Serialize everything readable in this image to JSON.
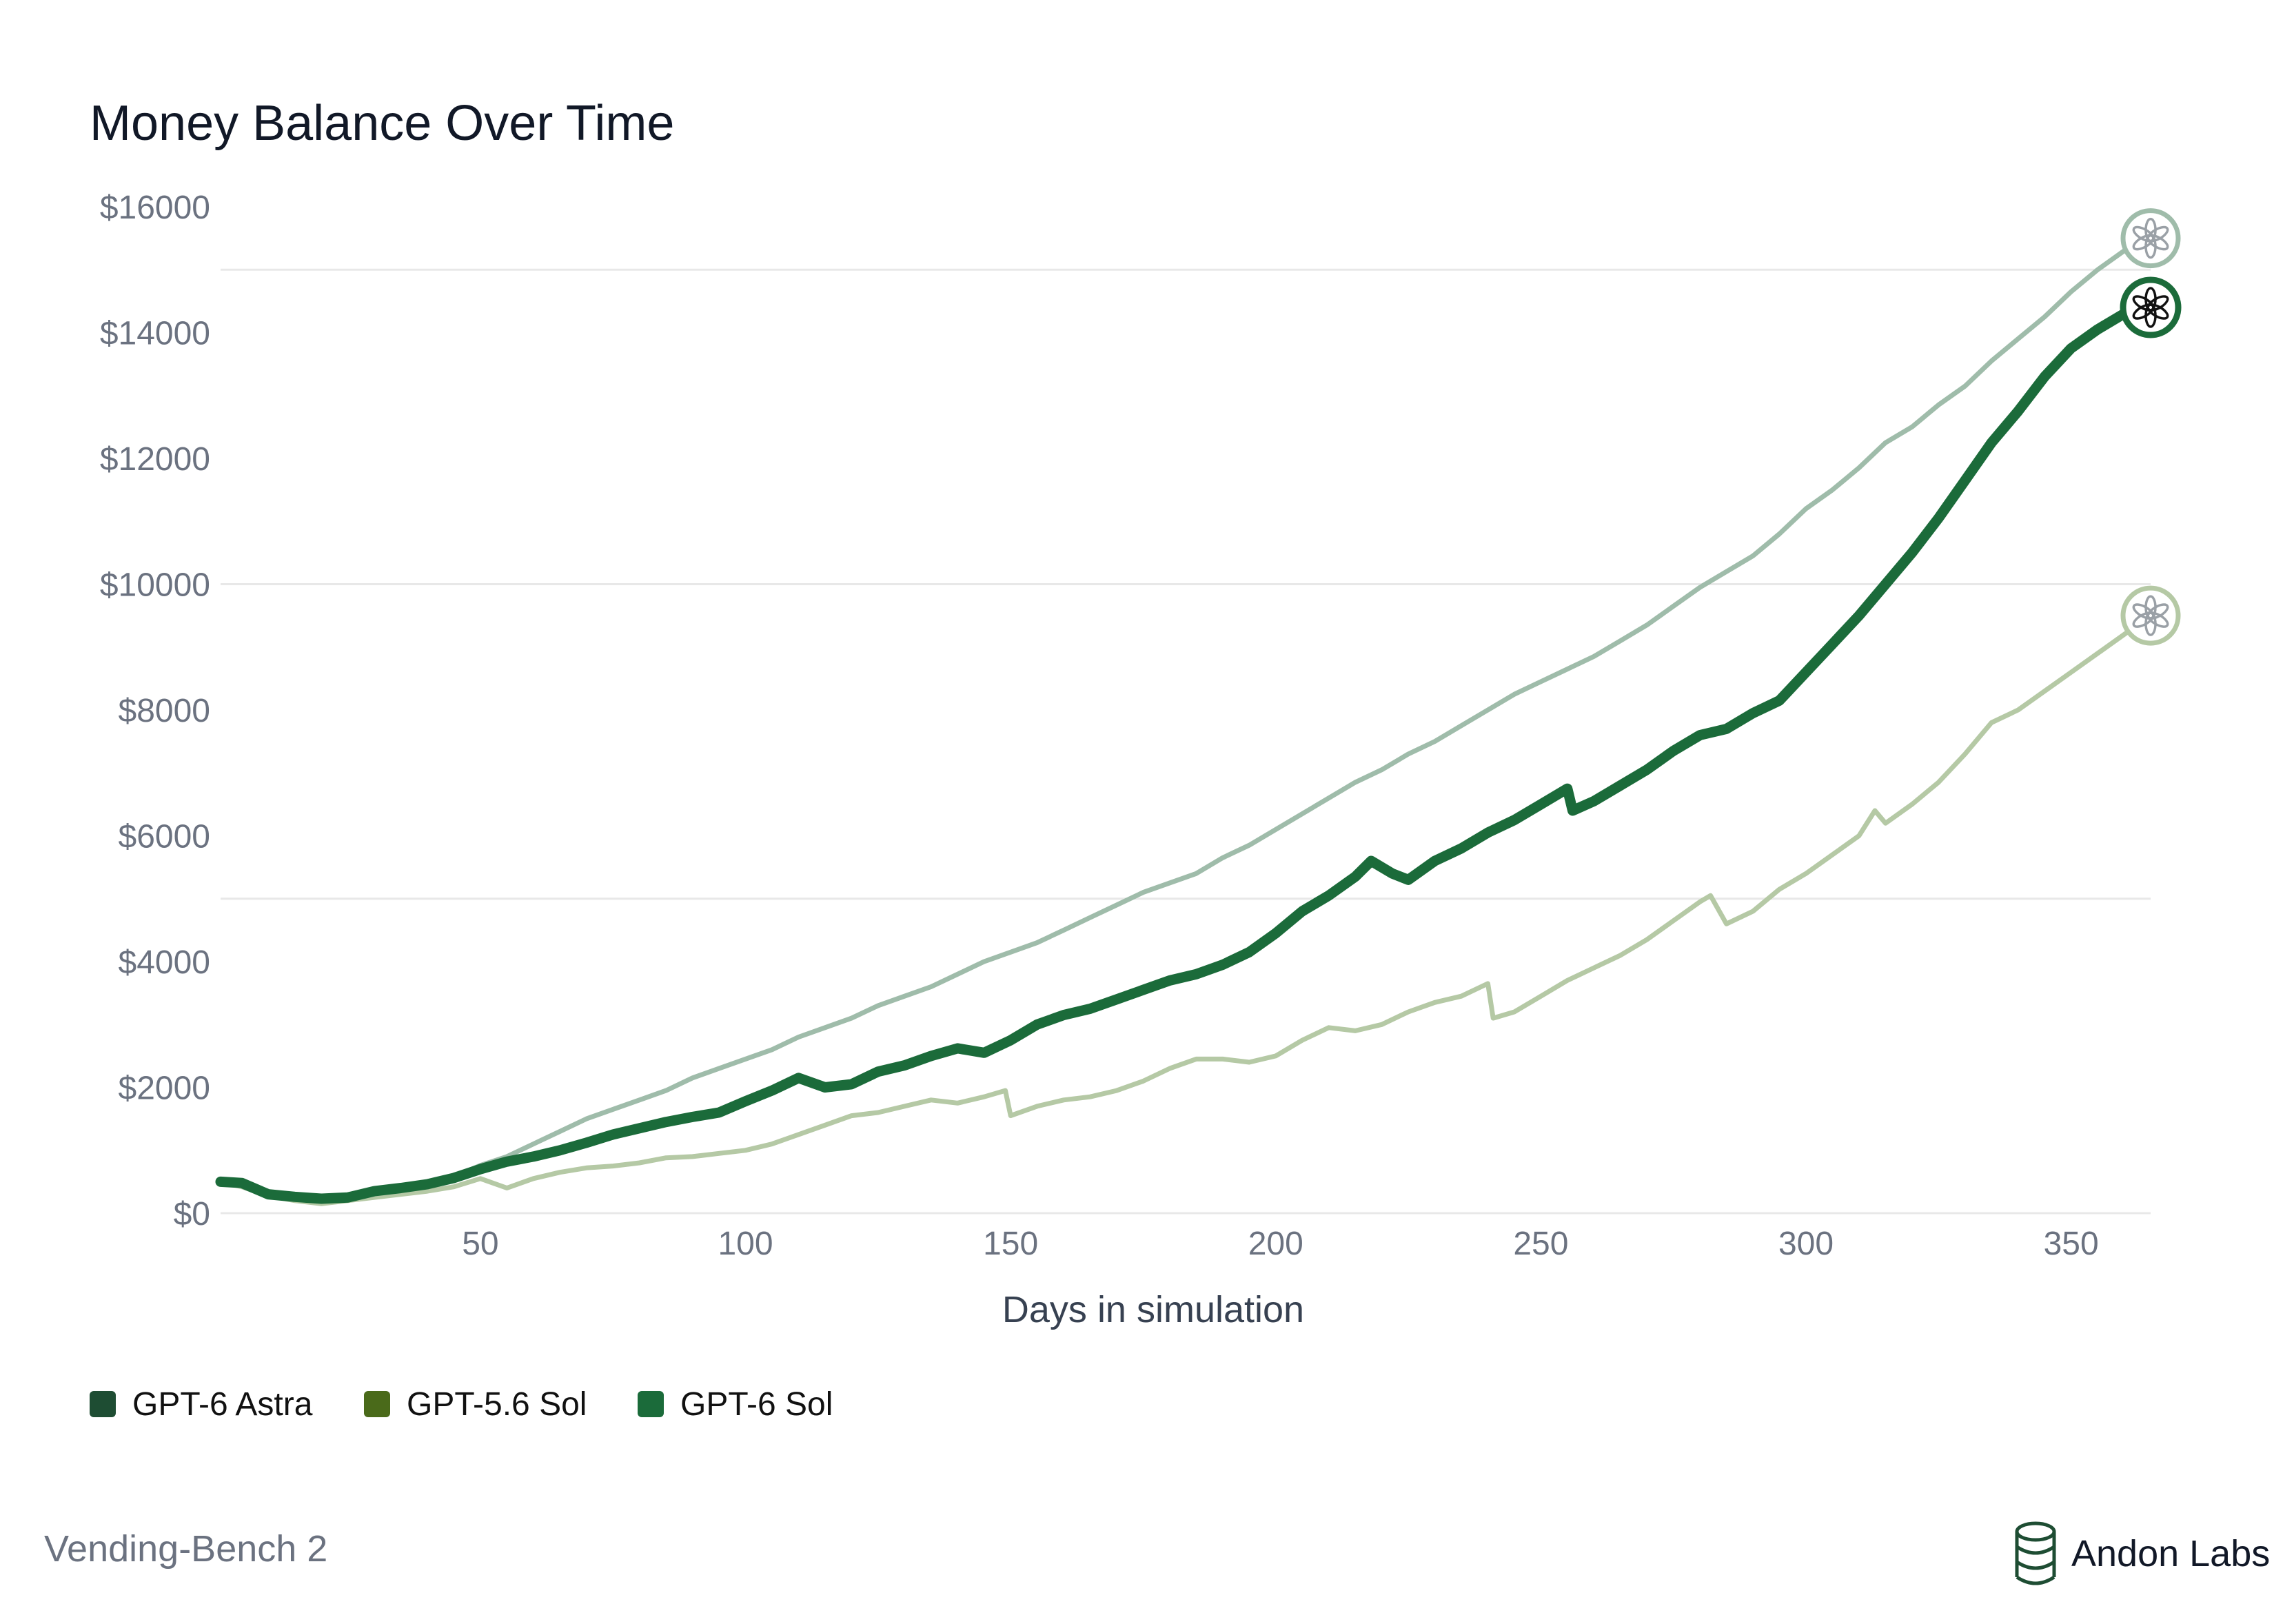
{
  "chart_data": {
    "type": "line",
    "title": "Money Balance Over Time",
    "xlabel": "Days in simulation",
    "ylabel": "",
    "xlim": [
      1,
      365
    ],
    "ylim": [
      0,
      16000
    ],
    "x_ticks": [
      50,
      100,
      150,
      200,
      250,
      300,
      350
    ],
    "x_tick_labels": [
      "50",
      "100",
      "150",
      "200",
      "250",
      "300",
      "350"
    ],
    "y_ticks": [
      0,
      2000,
      4000,
      6000,
      8000,
      10000,
      12000,
      14000,
      16000
    ],
    "y_tick_labels": [
      "$0",
      "$2000",
      "$4000",
      "$6000",
      "$8000",
      "$10000",
      "$12000",
      "$14000",
      "$16000"
    ],
    "gridlines_y": [
      0,
      5000,
      10000,
      15000
    ],
    "legend_position": "bottom-left",
    "series": [
      {
        "name": "GPT-6 Astra",
        "legend_color": "#1e4d33",
        "line_color": "#1b6b3a",
        "emphasis": "bold",
        "x": [
          1,
          5,
          10,
          15,
          20,
          25,
          30,
          35,
          40,
          45,
          50,
          55,
          60,
          65,
          70,
          75,
          80,
          85,
          90,
          95,
          100,
          105,
          110,
          115,
          120,
          125,
          130,
          135,
          140,
          145,
          150,
          155,
          160,
          165,
          170,
          175,
          180,
          185,
          190,
          195,
          200,
          205,
          210,
          215,
          218,
          222,
          225,
          230,
          235,
          240,
          245,
          250,
          255,
          256,
          260,
          265,
          270,
          275,
          280,
          285,
          290,
          295,
          300,
          305,
          310,
          315,
          320,
          325,
          330,
          335,
          340,
          345,
          350,
          355,
          360,
          365
        ],
        "y": [
          500,
          480,
          300,
          260,
          230,
          250,
          350,
          400,
          460,
          560,
          700,
          820,
          900,
          1000,
          1120,
          1250,
          1350,
          1450,
          1530,
          1600,
          1780,
          1950,
          2150,
          2000,
          2050,
          2250,
          2350,
          2500,
          2620,
          2550,
          2750,
          3000,
          3150,
          3250,
          3400,
          3550,
          3700,
          3800,
          3950,
          4150,
          4450,
          4800,
          5050,
          5350,
          5600,
          5400,
          5300,
          5600,
          5800,
          6050,
          6250,
          6500,
          6750,
          6400,
          6550,
          6800,
          7050,
          7350,
          7600,
          7700,
          7950,
          8150,
          8600,
          9050,
          9500,
          10000,
          10500,
          11050,
          11650,
          12250,
          12750,
          13300,
          13750,
          14050,
          14300,
          14400
        ]
      },
      {
        "name": "GPT-5.6 Sol",
        "legend_color": "#4a6a1a",
        "line_color": "#b5c9a5",
        "emphasis": "light",
        "x": [
          1,
          5,
          10,
          15,
          20,
          25,
          30,
          35,
          40,
          45,
          50,
          55,
          60,
          65,
          70,
          75,
          80,
          85,
          90,
          95,
          100,
          105,
          110,
          115,
          120,
          125,
          130,
          135,
          140,
          145,
          149,
          150,
          155,
          160,
          165,
          170,
          175,
          180,
          185,
          190,
          195,
          200,
          205,
          210,
          215,
          220,
          225,
          230,
          235,
          240,
          241,
          245,
          250,
          255,
          260,
          265,
          270,
          275,
          280,
          282,
          285,
          290,
          295,
          300,
          305,
          310,
          313,
          315,
          320,
          325,
          330,
          335,
          340,
          345,
          350,
          355,
          360,
          365
        ],
        "y": [
          500,
          420,
          280,
          200,
          150,
          200,
          250,
          300,
          350,
          420,
          550,
          400,
          550,
          650,
          720,
          750,
          800,
          880,
          900,
          950,
          1000,
          1100,
          1250,
          1400,
          1550,
          1600,
          1700,
          1800,
          1750,
          1850,
          1950,
          1550,
          1700,
          1800,
          1850,
          1950,
          2100,
          2300,
          2450,
          2450,
          2400,
          2500,
          2750,
          2950,
          2900,
          3000,
          3200,
          3350,
          3450,
          3650,
          3100,
          3200,
          3450,
          3700,
          3900,
          4100,
          4350,
          4650,
          4950,
          5050,
          4600,
          4800,
          5150,
          5400,
          5700,
          6000,
          6400,
          6200,
          6500,
          6850,
          7300,
          7800,
          8000,
          8300,
          8600,
          8900,
          9200,
          9500
        ]
      },
      {
        "name": "GPT-6 Sol",
        "legend_color": "#1b6b3a",
        "line_color": "#9fbcaa",
        "emphasis": "light",
        "x": [
          1,
          5,
          10,
          15,
          20,
          25,
          30,
          35,
          40,
          45,
          50,
          55,
          60,
          65,
          70,
          75,
          80,
          85,
          90,
          95,
          100,
          105,
          110,
          115,
          120,
          125,
          130,
          135,
          140,
          145,
          150,
          155,
          160,
          165,
          170,
          175,
          180,
          185,
          190,
          195,
          200,
          205,
          210,
          215,
          220,
          225,
          230,
          235,
          240,
          245,
          250,
          255,
          260,
          265,
          270,
          275,
          280,
          285,
          290,
          295,
          300,
          305,
          310,
          315,
          320,
          325,
          330,
          335,
          340,
          345,
          350,
          355,
          360,
          365
        ],
        "y": [
          500,
          460,
          330,
          260,
          220,
          240,
          320,
          400,
          480,
          580,
          760,
          900,
          1100,
          1300,
          1500,
          1650,
          1800,
          1950,
          2150,
          2300,
          2450,
          2600,
          2800,
          2950,
          3100,
          3300,
          3450,
          3600,
          3800,
          4000,
          4150,
          4300,
          4500,
          4700,
          4900,
          5100,
          5250,
          5400,
          5650,
          5850,
          6100,
          6350,
          6600,
          6850,
          7050,
          7300,
          7500,
          7750,
          8000,
          8250,
          8450,
          8650,
          8850,
          9100,
          9350,
          9650,
          9950,
          10200,
          10450,
          10800,
          11200,
          11500,
          11850,
          12250,
          12500,
          12850,
          13150,
          13550,
          13900,
          14250,
          14650,
          15000,
          15300,
          15500
        ]
      }
    ]
  },
  "footer": {
    "left_text": "Vending-Bench 2",
    "right_text": "Andon Labs"
  },
  "icons": {
    "series_end_marker": "openai-logo-icon",
    "brand": "andon-labs-logo-icon"
  }
}
